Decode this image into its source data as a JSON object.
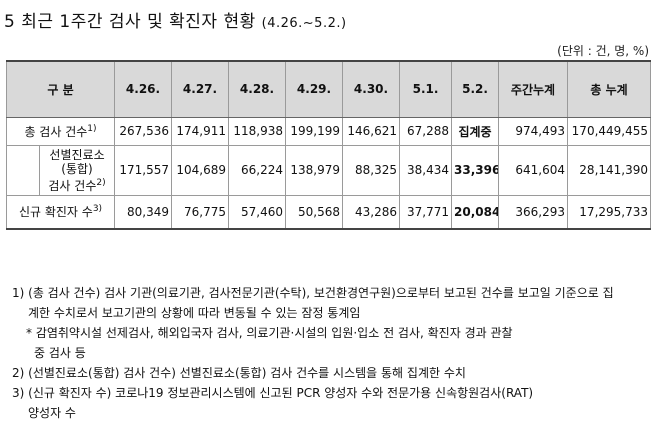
{
  "title": {
    "main": "5 최근 1주간 검사 및 확진자 현황",
    "period": "(4.26.~5.2.)"
  },
  "unit": "(단위 : 건, 명, %)",
  "table": {
    "headers": [
      "구 분",
      "4.26.",
      "4.27.",
      "4.28.",
      "4.29.",
      "4.30.",
      "5.1.",
      "5.2.",
      "주간누계",
      "총 누계"
    ],
    "rows": [
      {
        "label": "총 검사 건수",
        "fn": "1)",
        "values": [
          "267,536",
          "174,911",
          "118,938",
          "199,199",
          "146,621",
          "67,288",
          "집계중",
          "974,493",
          "170,449,455"
        ]
      },
      {
        "label_line1": "선별진료소",
        "label_line2": "(통합)",
        "label_line3": "검사 건수",
        "fn": "2)",
        "values": [
          "171,557",
          "104,689",
          "66,224",
          "138,979",
          "88,325",
          "38,434",
          "33,396",
          "641,604",
          "28,141,390"
        ]
      },
      {
        "label": "신규 확진자 수",
        "fn": "3)",
        "values": [
          "80,349",
          "76,775",
          "57,460",
          "50,568",
          "43,286",
          "37,771",
          "20,084",
          "366,293",
          "17,295,733"
        ]
      }
    ]
  },
  "notes": {
    "n1_line1": "1) (총 검사 건수) 검사 기관(의료기관, 검사전문기관(수탁), 보건환경연구원)으로부터 보고된 건수를 보고일 기준으로 집",
    "n1_line2": "계한 수치로서 보고기관의 상황에 따라 변동될 수 있는 잠정 통계임",
    "star_line1": "* 감염취약시설 선제검사, 해외입국자 검사, 의료기관·시설의 입원·입소 전 검사, 확진자 경과 관찰",
    "star_line2": "중 검사 등",
    "n2": "2) (선별진료소(통합) 검사 건수) 선별진료소(통합) 검사 건수를 시스템을 통해 집계한 수치",
    "n3_line1": "3) (신규 확진자 수) 코로나19 정보관리시스템에 신고된 PCR 양성자 수와 전문가용 신속항원검사(RAT)",
    "n3_line2": "양성자 수"
  }
}
